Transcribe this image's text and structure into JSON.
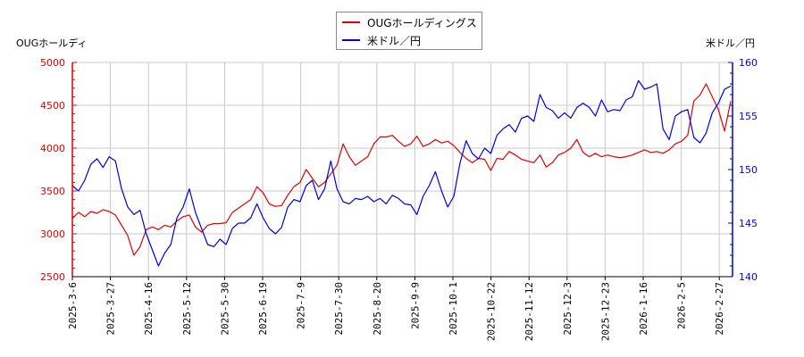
{
  "chart_data": {
    "type": "line",
    "title": "",
    "legend": {
      "position": "top-center",
      "entries": [
        {
          "label": "OUGホールディングス",
          "color": "#e00000"
        },
        {
          "label": "米ドル／円",
          "color": "#0000e0"
        }
      ]
    },
    "left_axis": {
      "label": "OUGホールディ",
      "color": "#e00000",
      "ylim": [
        2500,
        5000
      ],
      "ticks": [
        "5000",
        "4500",
        "4000",
        "3500",
        "3000",
        "2500"
      ]
    },
    "right_axis": {
      "label": "米ドル／円",
      "color": "#0000e0",
      "ylim": [
        140,
        160
      ],
      "ticks": [
        "160",
        "155",
        "150",
        "145",
        "140"
      ]
    },
    "x_ticks": [
      "2025-3-6",
      "2025-3-27",
      "2025-4-16",
      "2025-5-12",
      "2025-5-30",
      "2025-6-19",
      "2025-7-9",
      "2025-7-30",
      "2025-8-20",
      "2025-9-9",
      "2025-10-1",
      "2025-10-22",
      "2025-11-12",
      "2025-12-3",
      "2025-12-23",
      "2026-1-16",
      "2026-2-5",
      "2026-2-27"
    ],
    "grid": true,
    "series": [
      {
        "name": "OUGホールディングス",
        "axis": "left",
        "color": "#e00000",
        "values": [
          3180,
          3250,
          3200,
          3260,
          3240,
          3280,
          3260,
          3220,
          3100,
          2980,
          2750,
          2850,
          3050,
          3080,
          3050,
          3100,
          3080,
          3150,
          3200,
          3220,
          3080,
          3020,
          3100,
          3120,
          3120,
          3130,
          3250,
          3300,
          3350,
          3400,
          3550,
          3480,
          3350,
          3320,
          3330,
          3450,
          3550,
          3600,
          3750,
          3650,
          3550,
          3600,
          3700,
          3800,
          4050,
          3900,
          3800,
          3850,
          3900,
          4050,
          4130,
          4130,
          4150,
          4080,
          4020,
          4050,
          4140,
          4020,
          4050,
          4100,
          4060,
          4080,
          4030,
          3950,
          3880,
          3830,
          3880,
          3870,
          3740,
          3880,
          3870,
          3960,
          3920,
          3870,
          3850,
          3830,
          3920,
          3780,
          3830,
          3920,
          3950,
          4000,
          4100,
          3950,
          3900,
          3940,
          3900,
          3920,
          3900,
          3890,
          3900,
          3920,
          3950,
          3980,
          3950,
          3960,
          3940,
          3980,
          4050,
          4080,
          4150,
          4550,
          4620,
          4750,
          4600,
          4450,
          4200,
          4550
        ]
      },
      {
        "name": "米ドル／円",
        "axis": "right",
        "color": "#0000e0",
        "values": [
          148.5,
          148.0,
          149.0,
          150.5,
          151.0,
          150.2,
          151.2,
          150.8,
          148.2,
          146.5,
          145.8,
          146.2,
          144.0,
          142.5,
          141.0,
          142.2,
          143.0,
          145.5,
          146.5,
          148.2,
          146.0,
          144.5,
          143.0,
          142.8,
          143.5,
          143.0,
          144.5,
          145.0,
          145.0,
          145.5,
          146.8,
          145.5,
          144.5,
          144.0,
          144.6,
          146.5,
          147.2,
          147.0,
          148.5,
          149.0,
          147.2,
          148.2,
          150.8,
          148.2,
          147.0,
          146.8,
          147.3,
          147.2,
          147.5,
          147.0,
          147.3,
          146.8,
          147.6,
          147.3,
          146.8,
          146.7,
          145.8,
          147.5,
          148.5,
          149.8,
          148.0,
          146.5,
          147.5,
          150.6,
          152.7,
          151.5,
          151.0,
          152.0,
          151.5,
          153.2,
          153.8,
          154.2,
          153.5,
          154.8,
          155.0,
          154.5,
          157.0,
          155.8,
          155.5,
          154.8,
          155.3,
          154.8,
          155.8,
          156.2,
          155.8,
          155.0,
          156.5,
          155.4,
          155.6,
          155.5,
          156.5,
          156.8,
          158.3,
          157.5,
          157.7,
          158.0,
          153.8,
          152.8,
          155.0,
          155.4,
          155.6,
          153.0,
          152.5,
          153.4,
          155.3,
          156.2,
          157.5,
          157.8
        ]
      }
    ]
  }
}
